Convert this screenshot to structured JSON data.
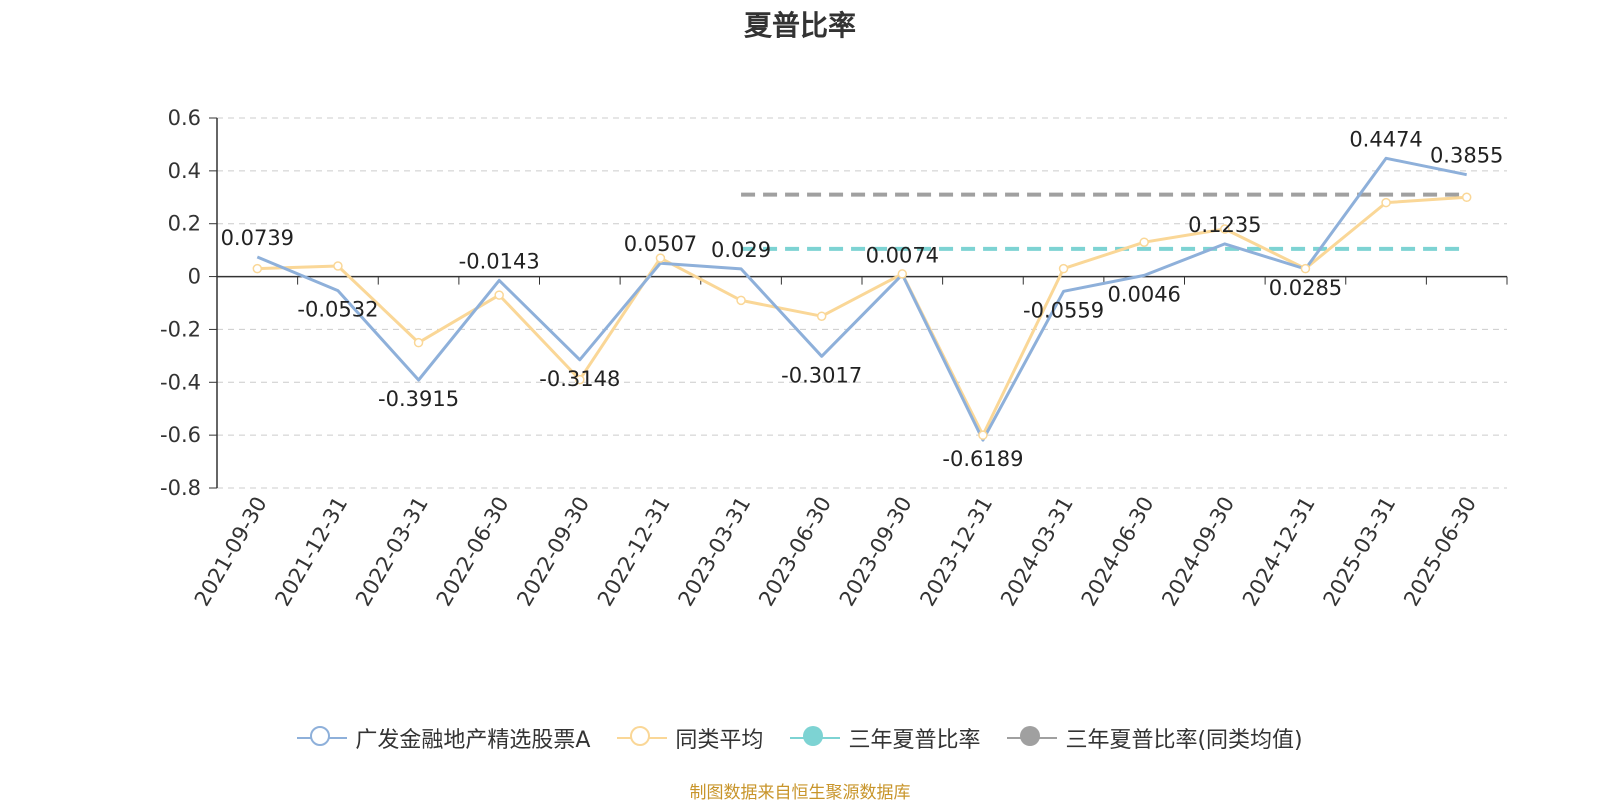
{
  "chart_data": {
    "type": "line",
    "title": "夏普比率",
    "categories": [
      "2021-09-30",
      "2021-12-31",
      "2022-03-31",
      "2022-06-30",
      "2022-09-30",
      "2022-12-31",
      "2023-03-31",
      "2023-06-30",
      "2023-09-30",
      "2023-12-31",
      "2024-03-31",
      "2024-06-30",
      "2024-09-30",
      "2024-12-31",
      "2025-03-31",
      "2025-06-30"
    ],
    "ylim": [
      -0.8,
      0.6
    ],
    "yticks": [
      0.6,
      0.4,
      0.2,
      0,
      -0.2,
      -0.4,
      -0.6,
      -0.8
    ],
    "ytick_labels": [
      "0.6",
      "0.4",
      "0.2",
      "0",
      "-0.2",
      "-0.4",
      "-0.6",
      "-0.8"
    ],
    "grid": true,
    "legend_position": "bottom",
    "series": [
      {
        "name": "广发金融地产精选股票A",
        "color": "#8eb0da",
        "values": [
          0.0739,
          -0.0532,
          -0.3915,
          -0.0143,
          -0.3148,
          0.0507,
          0.029,
          -0.3017,
          0.0074,
          -0.6189,
          -0.0559,
          0.0046,
          0.1235,
          0.0285,
          0.4474,
          0.3855
        ],
        "labels": [
          "0.0739",
          "-0.0532",
          "-0.3915",
          "-0.0143",
          "-0.3148",
          "0.0507",
          "0.029",
          "-0.3017",
          "0.0074",
          "-0.6189",
          "-0.0559",
          "0.0046",
          "0.1235",
          "0.0285",
          "0.4474",
          "0.3855"
        ]
      },
      {
        "name": "同类平均",
        "color": "#fad797",
        "values": [
          0.03,
          0.04,
          -0.25,
          -0.07,
          -0.39,
          0.07,
          -0.09,
          -0.15,
          0.01,
          -0.6,
          0.03,
          0.13,
          0.18,
          0.03,
          0.28,
          0.3
        ]
      },
      {
        "name": "三年夏普比率",
        "color": "#7dd3d3",
        "type": "dashed-line",
        "value": 0.105,
        "x_range": [
          "2023-03-31",
          "2025-06-30"
        ]
      },
      {
        "name": "三年夏普比率(同类均值)",
        "color": "#a0a0a0",
        "type": "dashed-line",
        "value": 0.31,
        "x_range": [
          "2023-03-31",
          "2025-06-30"
        ]
      }
    ]
  },
  "source": "制图数据来自恒生聚源数据库"
}
